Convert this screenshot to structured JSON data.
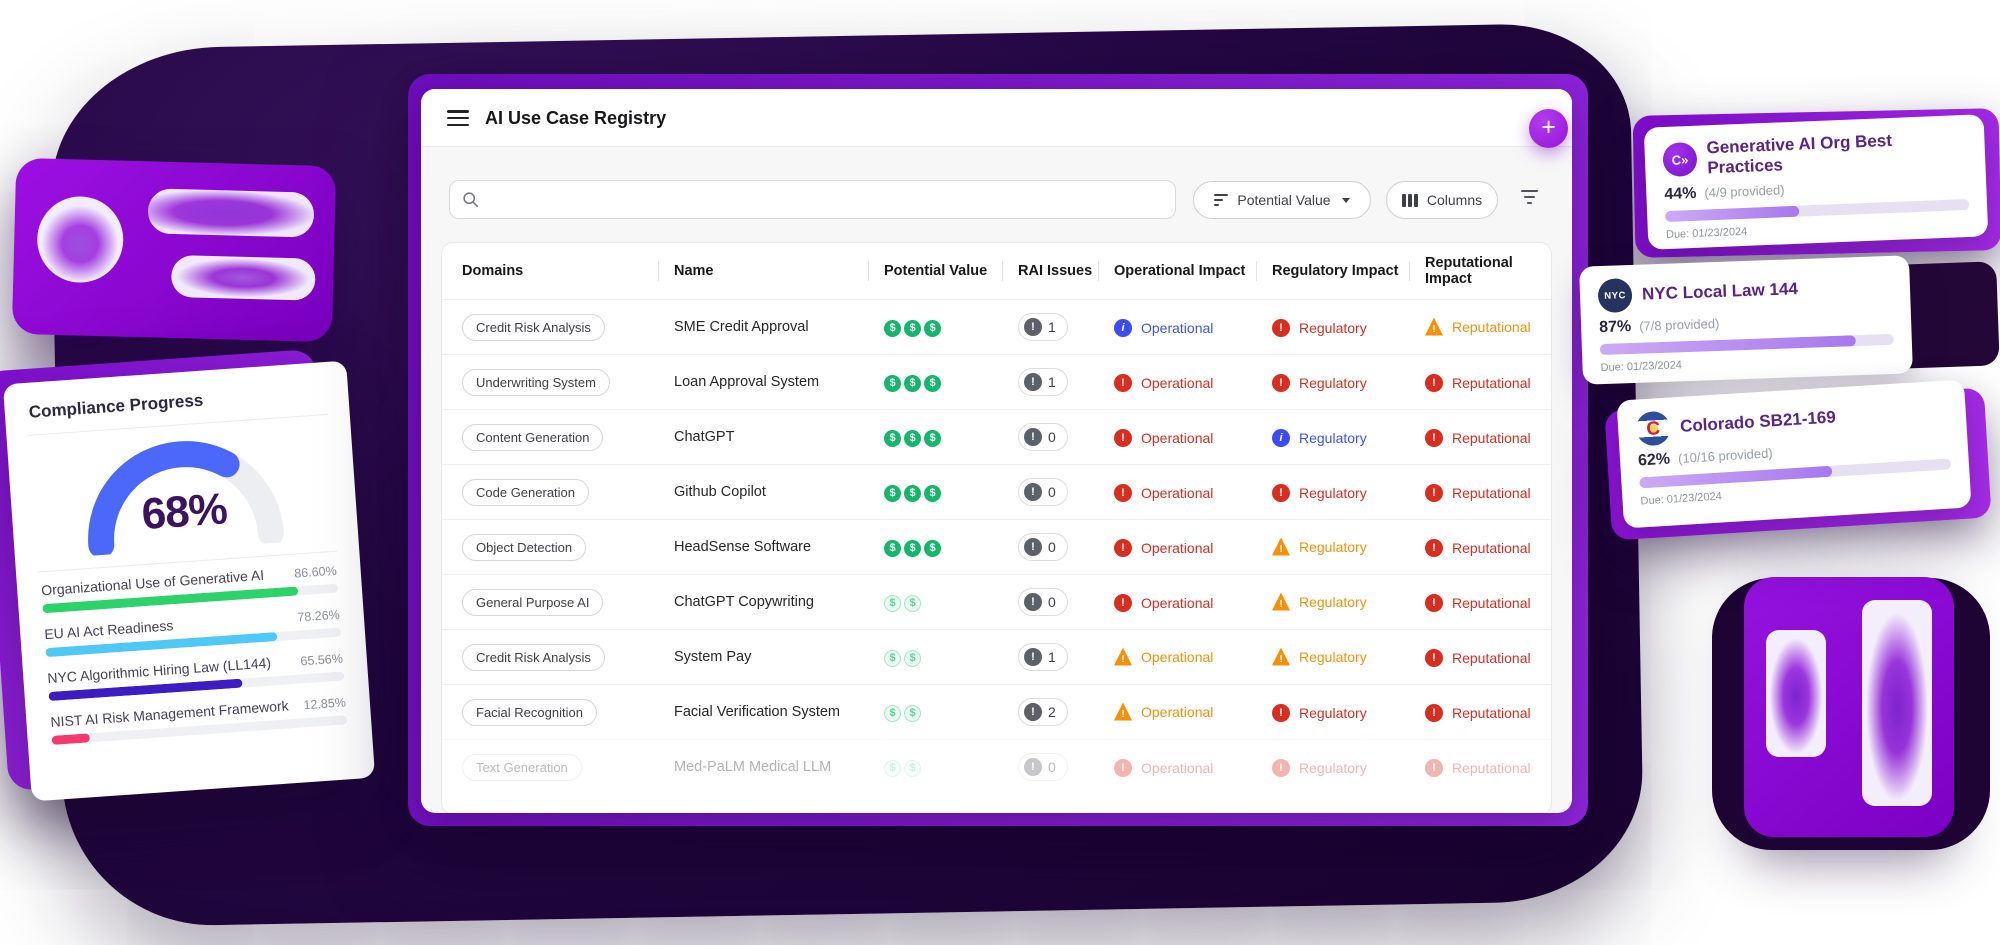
{
  "colors": {
    "accent_purple": "#9116dd",
    "green": "#12b76a",
    "red": "#d92d20",
    "orange": "#f79009",
    "blue": "#3d55f0",
    "gauge_blue": "#4c68fb"
  },
  "main": {
    "title": "AI Use Case Registry",
    "add_button_label": "+",
    "search": {
      "placeholder": ""
    },
    "toolbar": {
      "sort_label": "Potential Value",
      "columns_label": "Columns"
    },
    "table": {
      "columns": [
        "Domains",
        "Name",
        "Potential Value",
        "RAI Issues",
        "Operational Impact",
        "Regulatory Impact",
        "Reputational Impact"
      ],
      "impact_labels": {
        "operational": "Operational",
        "regulatory": "Regulatory",
        "reputational": "Reputational"
      },
      "rows": [
        {
          "domain": "Credit Risk Analysis",
          "name": "SME Credit Approval",
          "value_count": 3,
          "value_style": "solid",
          "rai_issues": 1,
          "operational": "info",
          "regulatory": "high",
          "reputational": "warning",
          "faded": false
        },
        {
          "domain": "Underwriting System",
          "name": "Loan Approval System",
          "value_count": 3,
          "value_style": "solid",
          "rai_issues": 1,
          "operational": "high",
          "regulatory": "high",
          "reputational": "high",
          "faded": false
        },
        {
          "domain": "Content Generation",
          "name": "ChatGPT",
          "value_count": 3,
          "value_style": "solid",
          "rai_issues": 0,
          "operational": "high",
          "regulatory": "info",
          "reputational": "high",
          "faded": false
        },
        {
          "domain": "Code Generation",
          "name": "Github Copilot",
          "value_count": 3,
          "value_style": "solid",
          "rai_issues": 0,
          "operational": "high",
          "regulatory": "high",
          "reputational": "high",
          "faded": false
        },
        {
          "domain": "Object Detection",
          "name": "HeadSense Software",
          "value_count": 3,
          "value_style": "solid",
          "rai_issues": 0,
          "operational": "high",
          "regulatory": "warning",
          "reputational": "high",
          "faded": false
        },
        {
          "domain": "General Purpose AI",
          "name": "ChatGPT Copywriting",
          "value_count": 2,
          "value_style": "light",
          "rai_issues": 0,
          "operational": "high",
          "regulatory": "warning",
          "reputational": "high",
          "faded": false
        },
        {
          "domain": "Credit Risk Analysis",
          "name": "System Pay",
          "value_count": 2,
          "value_style": "light",
          "rai_issues": 1,
          "operational": "warning",
          "regulatory": "warning",
          "reputational": "high",
          "faded": false
        },
        {
          "domain": "Facial Recognition",
          "name": "Facial Verification System",
          "value_count": 2,
          "value_style": "light",
          "rai_issues": 2,
          "operational": "warning",
          "regulatory": "high",
          "reputational": "high",
          "faded": false
        },
        {
          "domain": "Text Generation",
          "name": "Med-PaLM Medical LLM",
          "value_count": 2,
          "value_style": "light",
          "rai_issues": 0,
          "operational": "high",
          "regulatory": "high",
          "reputational": "high",
          "faded": true
        }
      ]
    }
  },
  "compliance": {
    "title": "Compliance Progress",
    "gauge": {
      "percent": 68,
      "label": "68%"
    },
    "items": [
      {
        "label": "Organizational Use of Generative AI",
        "percent_label": "86.60%",
        "percent": 86.6,
        "color": "#2bd36a"
      },
      {
        "label": "EU AI Act Readiness",
        "percent_label": "78.26%",
        "percent": 78.26,
        "color": "#4ec9f5"
      },
      {
        "label": "NYC Algorithmic Hiring Law (LL144)",
        "percent_label": "65.56%",
        "percent": 65.56,
        "color": "#3d1cc2"
      },
      {
        "label": "NIST AI Risk Management Framework",
        "percent_label": "12.85%",
        "percent": 12.85,
        "color": "#f5386e"
      }
    ]
  },
  "right_cards": [
    {
      "badge_type": "credo",
      "badge_text": "C»",
      "title": "Generative AI Org Best Practices",
      "percent_label": "44%",
      "provided": "(4/9 provided)",
      "percent": 44,
      "due": "Due: 01/23/2024"
    },
    {
      "badge_type": "nyc",
      "badge_text": "NYC",
      "title": "NYC Local Law 144",
      "percent_label": "87%",
      "provided": "(7/8 provided)",
      "percent": 87,
      "due": "Due: 01/23/2024"
    },
    {
      "badge_type": "colorado",
      "badge_text": "C",
      "title": "Colorado SB21-169",
      "percent_label": "62%",
      "provided": "(10/16 provided)",
      "percent": 62,
      "due": "Due: 01/23/2024"
    }
  ]
}
